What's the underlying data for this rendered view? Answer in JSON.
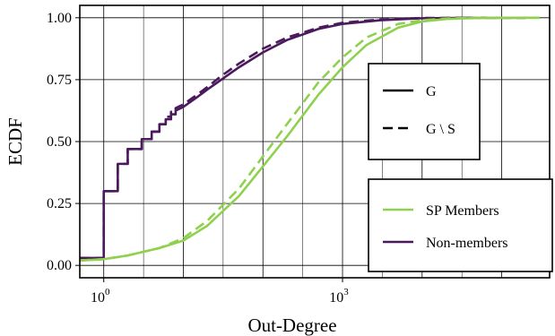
{
  "chart_data": {
    "type": "line",
    "title": "",
    "xlabel": "Out-Degree",
    "ylabel": "ECDF",
    "x_scale": "log10",
    "xlim": [
      0.5,
      400000
    ],
    "ylim": [
      -0.05,
      1.05
    ],
    "grid": true,
    "x_ticks": [
      {
        "value": 1,
        "base": "10",
        "exp": "0"
      },
      {
        "value": 1000,
        "base": "10",
        "exp": "3"
      }
    ],
    "y_ticks": [
      {
        "value": 0.0,
        "label": "0.00"
      },
      {
        "value": 0.25,
        "label": "0.25"
      },
      {
        "value": 0.5,
        "label": "0.50"
      },
      {
        "value": 0.75,
        "label": "0.75"
      },
      {
        "value": 1.0,
        "label": "1.00"
      }
    ],
    "linestyle_legend": {
      "placement": "right",
      "entries": [
        {
          "label": "G",
          "style": "solid"
        },
        {
          "label": "G \\ S",
          "style": "dashed"
        }
      ]
    },
    "color_legend": {
      "placement": "bottom-right",
      "entries": [
        {
          "label": "SP Members",
          "color": "#8fd14f"
        },
        {
          "label": "Non-members",
          "color": "#4b1a5c"
        }
      ]
    },
    "series": [
      {
        "group": "Non-members",
        "style": "solid",
        "color": "#4b1a5c",
        "step": true,
        "points": [
          [
            0.5,
            0.03
          ],
          [
            1,
            0.03
          ],
          [
            1,
            0.3
          ],
          [
            1.5,
            0.3
          ],
          [
            1.5,
            0.41
          ],
          [
            2,
            0.41
          ],
          [
            2,
            0.47
          ],
          [
            3,
            0.47
          ],
          [
            3,
            0.51
          ],
          [
            4,
            0.51
          ],
          [
            4,
            0.54
          ],
          [
            5,
            0.54
          ],
          [
            5,
            0.57
          ],
          [
            6,
            0.57
          ],
          [
            6,
            0.59
          ],
          [
            7,
            0.59
          ],
          [
            7,
            0.61
          ],
          [
            8,
            0.61
          ],
          [
            8,
            0.625
          ],
          [
            10,
            0.64
          ],
          [
            15,
            0.68
          ],
          [
            20,
            0.71
          ],
          [
            30,
            0.75
          ],
          [
            50,
            0.8
          ],
          [
            100,
            0.86
          ],
          [
            200,
            0.91
          ],
          [
            500,
            0.955
          ],
          [
            1000,
            0.975
          ],
          [
            3000,
            0.99
          ],
          [
            10000,
            0.998
          ],
          [
            50000,
            1.0
          ],
          [
            200000,
            1.0
          ]
        ]
      },
      {
        "group": "Non-members",
        "style": "dashed",
        "color": "#4b1a5c",
        "step": true,
        "points": [
          [
            0.5,
            0.03
          ],
          [
            1,
            0.03
          ],
          [
            1,
            0.3
          ],
          [
            1.5,
            0.3
          ],
          [
            1.5,
            0.41
          ],
          [
            2,
            0.41
          ],
          [
            2,
            0.47
          ],
          [
            3,
            0.47
          ],
          [
            3,
            0.51
          ],
          [
            4,
            0.51
          ],
          [
            4,
            0.54
          ],
          [
            5,
            0.54
          ],
          [
            5,
            0.57
          ],
          [
            6,
            0.57
          ],
          [
            6,
            0.6
          ],
          [
            7,
            0.6
          ],
          [
            7,
            0.62
          ],
          [
            8,
            0.62
          ],
          [
            8,
            0.635
          ],
          [
            10,
            0.65
          ],
          [
            15,
            0.69
          ],
          [
            20,
            0.72
          ],
          [
            30,
            0.765
          ],
          [
            50,
            0.815
          ],
          [
            100,
            0.875
          ],
          [
            200,
            0.92
          ],
          [
            500,
            0.96
          ],
          [
            1000,
            0.98
          ],
          [
            3000,
            0.993
          ],
          [
            10000,
            0.999
          ],
          [
            50000,
            1.0
          ],
          [
            200000,
            1.0
          ]
        ]
      },
      {
        "group": "SP Members",
        "style": "solid",
        "color": "#8fd14f",
        "step": false,
        "points": [
          [
            0.5,
            0.02
          ],
          [
            1,
            0.025
          ],
          [
            2,
            0.04
          ],
          [
            5,
            0.07
          ],
          [
            10,
            0.1
          ],
          [
            20,
            0.16
          ],
          [
            50,
            0.28
          ],
          [
            100,
            0.4
          ],
          [
            200,
            0.52
          ],
          [
            500,
            0.69
          ],
          [
            1000,
            0.8
          ],
          [
            2000,
            0.89
          ],
          [
            5000,
            0.96
          ],
          [
            10000,
            0.985
          ],
          [
            20000,
            0.995
          ],
          [
            50000,
            0.999
          ],
          [
            100000,
            1.0
          ],
          [
            300000,
            1.0
          ]
        ]
      },
      {
        "group": "SP Members",
        "style": "dashed",
        "color": "#8fd14f",
        "step": false,
        "points": [
          [
            0.5,
            0.02
          ],
          [
            1,
            0.025
          ],
          [
            2,
            0.04
          ],
          [
            5,
            0.07
          ],
          [
            10,
            0.11
          ],
          [
            20,
            0.18
          ],
          [
            50,
            0.31
          ],
          [
            100,
            0.44
          ],
          [
            200,
            0.57
          ],
          [
            500,
            0.74
          ],
          [
            1000,
            0.84
          ],
          [
            2000,
            0.92
          ],
          [
            5000,
            0.975
          ],
          [
            10000,
            0.99
          ],
          [
            20000,
            0.997
          ],
          [
            50000,
            1.0
          ],
          [
            100000,
            1.0
          ],
          [
            300000,
            1.0
          ]
        ]
      }
    ]
  }
}
